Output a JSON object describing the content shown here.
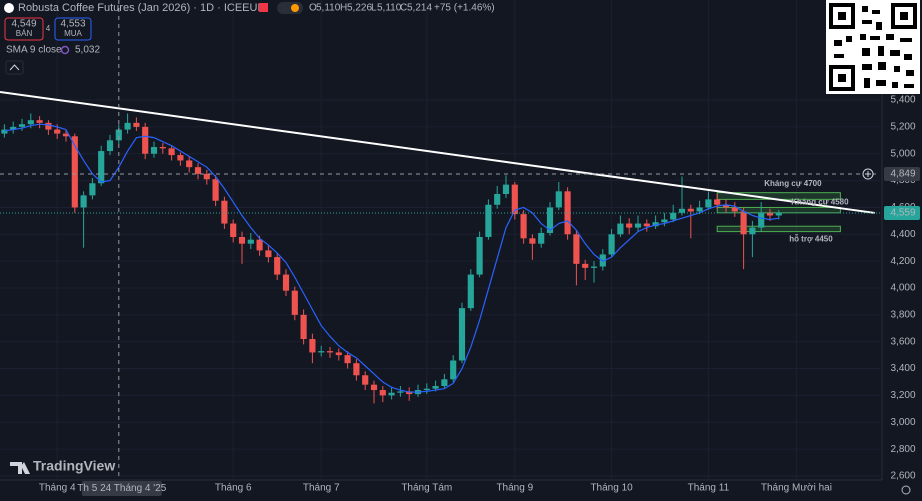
{
  "header": {
    "title": "Robusta Coffee Futures (Jan 2026) · 1D · ICEEUR",
    "o_label": "O",
    "open": "5,110",
    "h_label": "H",
    "high": "5,226",
    "l_label": "L",
    "low": "5,110",
    "c_label": "C",
    "close": "5,214",
    "change": "+75 (+1.46%)",
    "sell_price": "4,549",
    "sell_label": "BÁN",
    "spread": "4",
    "buy_price": "4,553",
    "buy_label": "MUA",
    "indicator": "SMA 9 close",
    "indicator_value": "5,032",
    "logo": "TradingView"
  },
  "chart_data": {
    "type": "candlestick",
    "candles": [
      [
        5150,
        5220,
        5120,
        5180
      ],
      [
        5180,
        5240,
        5150,
        5200
      ],
      [
        5200,
        5260,
        5170,
        5220
      ],
      [
        5220,
        5300,
        5190,
        5250
      ],
      [
        5250,
        5280,
        5190,
        5230
      ],
      [
        5230,
        5250,
        5140,
        5180
      ],
      [
        5180,
        5220,
        5110,
        5150
      ],
      [
        5150,
        5180,
        5090,
        5130
      ],
      [
        5130,
        5150,
        4560,
        4600
      ],
      [
        4600,
        4720,
        4300,
        4690
      ],
      [
        4690,
        4820,
        4660,
        4780
      ],
      [
        4780,
        5060,
        4760,
        5020
      ],
      [
        5020,
        5140,
        4990,
        5100
      ],
      [
        5100,
        5220,
        5070,
        5180
      ],
      [
        5180,
        5300,
        5150,
        5230
      ],
      [
        5230,
        5270,
        5170,
        5200
      ],
      [
        5200,
        5230,
        4960,
        5000
      ],
      [
        5000,
        5090,
        4970,
        5050
      ],
      [
        5050,
        5080,
        5000,
        5040
      ],
      [
        5040,
        5060,
        4950,
        4990
      ],
      [
        4990,
        5010,
        4910,
        4950
      ],
      [
        4950,
        4980,
        4860,
        4900
      ],
      [
        4900,
        4930,
        4810,
        4850
      ],
      [
        4850,
        4880,
        4770,
        4810
      ],
      [
        4810,
        4840,
        4610,
        4650
      ],
      [
        4650,
        4680,
        4440,
        4480
      ],
      [
        4480,
        4510,
        4340,
        4380
      ],
      [
        4380,
        4420,
        4180,
        4330
      ],
      [
        4330,
        4410,
        4290,
        4360
      ],
      [
        4360,
        4390,
        4240,
        4280
      ],
      [
        4280,
        4320,
        4190,
        4230
      ],
      [
        4230,
        4260,
        4060,
        4100
      ],
      [
        4100,
        4140,
        3940,
        3980
      ],
      [
        3980,
        4010,
        3760,
        3800
      ],
      [
        3800,
        3840,
        3580,
        3620
      ],
      [
        3620,
        3660,
        3440,
        3520
      ],
      [
        3520,
        3570,
        3490,
        3530
      ],
      [
        3530,
        3560,
        3480,
        3520
      ],
      [
        3520,
        3550,
        3460,
        3500
      ],
      [
        3500,
        3530,
        3400,
        3440
      ],
      [
        3440,
        3470,
        3310,
        3350
      ],
      [
        3350,
        3380,
        3240,
        3280
      ],
      [
        3280,
        3310,
        3140,
        3240
      ],
      [
        3240,
        3270,
        3150,
        3200
      ],
      [
        3200,
        3260,
        3170,
        3220
      ],
      [
        3220,
        3270,
        3190,
        3230
      ],
      [
        3230,
        3260,
        3160,
        3210
      ],
      [
        3210,
        3280,
        3190,
        3240
      ],
      [
        3240,
        3290,
        3210,
        3250
      ],
      [
        3250,
        3310,
        3230,
        3270
      ],
      [
        3270,
        3360,
        3250,
        3320
      ],
      [
        3320,
        3500,
        3300,
        3460
      ],
      [
        3460,
        3890,
        3440,
        3850
      ],
      [
        3850,
        4140,
        3830,
        4100
      ],
      [
        4100,
        4420,
        4080,
        4380
      ],
      [
        4380,
        4660,
        4360,
        4620
      ],
      [
        4620,
        4760,
        4590,
        4700
      ],
      [
        4700,
        4840,
        4670,
        4770
      ],
      [
        4770,
        4790,
        4510,
        4550
      ],
      [
        4550,
        4580,
        4330,
        4370
      ],
      [
        4370,
        4400,
        4210,
        4330
      ],
      [
        4330,
        4450,
        4300,
        4410
      ],
      [
        4410,
        4640,
        4390,
        4600
      ],
      [
        4600,
        4790,
        4580,
        4720
      ],
      [
        4720,
        4750,
        4360,
        4400
      ],
      [
        4400,
        4430,
        4020,
        4180
      ],
      [
        4180,
        4210,
        4060,
        4150
      ],
      [
        4150,
        4200,
        4040,
        4160
      ],
      [
        4160,
        4290,
        4130,
        4250
      ],
      [
        4250,
        4440,
        4230,
        4400
      ],
      [
        4400,
        4540,
        4380,
        4480
      ],
      [
        4480,
        4520,
        4400,
        4450
      ],
      [
        4450,
        4540,
        4420,
        4480
      ],
      [
        4480,
        4510,
        4420,
        4460
      ],
      [
        4460,
        4540,
        4440,
        4490
      ],
      [
        4490,
        4560,
        4460,
        4510
      ],
      [
        4510,
        4620,
        4490,
        4560
      ],
      [
        4560,
        4830,
        4540,
        4590
      ],
      [
        4590,
        4620,
        4370,
        4570
      ],
      [
        4570,
        4650,
        4550,
        4600
      ],
      [
        4600,
        4720,
        4580,
        4660
      ],
      [
        4660,
        4700,
        4590,
        4620
      ],
      [
        4620,
        4660,
        4560,
        4600
      ],
      [
        4600,
        4640,
        4530,
        4570
      ],
      [
        4570,
        4600,
        4140,
        4400
      ],
      [
        4400,
        4500,
        4230,
        4450
      ],
      [
        4450,
        4640,
        4420,
        4560
      ],
      [
        4560,
        4590,
        4500,
        4540
      ],
      [
        4540,
        4580,
        4510,
        4559
      ]
    ],
    "up_color": "#26a69a",
    "down_color": "#ef5350",
    "sma": {
      "name": "SMA 9 close",
      "color": "#2962ff",
      "values": [
        5170,
        5180,
        5190,
        5210,
        5220,
        5215,
        5200,
        5180,
        5060,
        4950,
        4850,
        4790,
        4800,
        4900,
        5020,
        5120,
        5130,
        5120,
        5090,
        5060,
        5020,
        4980,
        4940,
        4900,
        4830,
        4740,
        4640,
        4540,
        4450,
        4370,
        4320,
        4260,
        4190,
        4080,
        3960,
        3840,
        3720,
        3640,
        3570,
        3520,
        3480,
        3420,
        3360,
        3300,
        3260,
        3240,
        3225,
        3225,
        3230,
        3240,
        3250,
        3290,
        3400,
        3560,
        3760,
        3990,
        4220,
        4450,
        4580,
        4600,
        4560,
        4480,
        4430,
        4480,
        4500,
        4430,
        4330,
        4250,
        4200,
        4230,
        4300,
        4360,
        4420,
        4450,
        4470,
        4480,
        4500,
        4520,
        4540,
        4560,
        4590,
        4610,
        4620,
        4610,
        4570,
        4540,
        4520,
        4510,
        4520
      ]
    },
    "xlim": [
      -0.5,
      99.5
    ],
    "xticks": [
      {
        "value": 6,
        "label": "Tháng 4"
      },
      {
        "value": 26,
        "label": "Tháng 6"
      },
      {
        "value": 36,
        "label": "Tháng 7"
      },
      {
        "value": 48,
        "label": "Tháng Tám"
      },
      {
        "value": 58,
        "label": "Tháng 9"
      },
      {
        "value": 69,
        "label": "Tháng 10"
      },
      {
        "value": 80,
        "label": "Tháng 11"
      },
      {
        "value": 90,
        "label": "Tháng Mười hai"
      }
    ],
    "ylim": [
      2570,
      6145
    ],
    "yticks": [
      {
        "value": 2600,
        "label": "2,600"
      },
      {
        "value": 2800,
        "label": "2,800"
      },
      {
        "value": 3000,
        "label": "3,000"
      },
      {
        "value": 3200,
        "label": "3,200"
      },
      {
        "value": 3400,
        "label": "3,400"
      },
      {
        "value": 3600,
        "label": "3,600"
      },
      {
        "value": 3800,
        "label": "3,800"
      },
      {
        "value": 4000,
        "label": "4,000"
      },
      {
        "value": 4200,
        "label": "4,200"
      },
      {
        "value": 4400,
        "label": "4,400"
      },
      {
        "value": 4600,
        "label": "4,600"
      },
      {
        "value": 4800,
        "label": "4,800"
      },
      {
        "value": 5000,
        "label": "5,000"
      },
      {
        "value": 5200,
        "label": "5,200"
      },
      {
        "value": 5400,
        "label": "5,400"
      }
    ],
    "grid": true,
    "trendline": {
      "color": "#ffffff",
      "x": [
        -0.5,
        98.9
      ],
      "y": [
        5460,
        4559
      ]
    },
    "zones": [
      {
        "label": "Kháng cự 4700",
        "from": 4660,
        "to": 4710,
        "x": [
          81,
          95
        ]
      },
      {
        "label": "Kháng cự 4580",
        "from": 4560,
        "to": 4600,
        "x": [
          81,
          95
        ]
      },
      {
        "label": "hỗ trợ 4450",
        "from": 4420,
        "to": 4460,
        "x": [
          81,
          95
        ]
      }
    ],
    "zone_color": "#4caf50",
    "crosshair": {
      "x": 13,
      "x_label": "Th 5 24 Tháng 4 '25",
      "y": {
        "value": 4849,
        "label": "4,849"
      }
    },
    "last_price": {
      "value": 4559,
      "label": "4,559"
    }
  }
}
